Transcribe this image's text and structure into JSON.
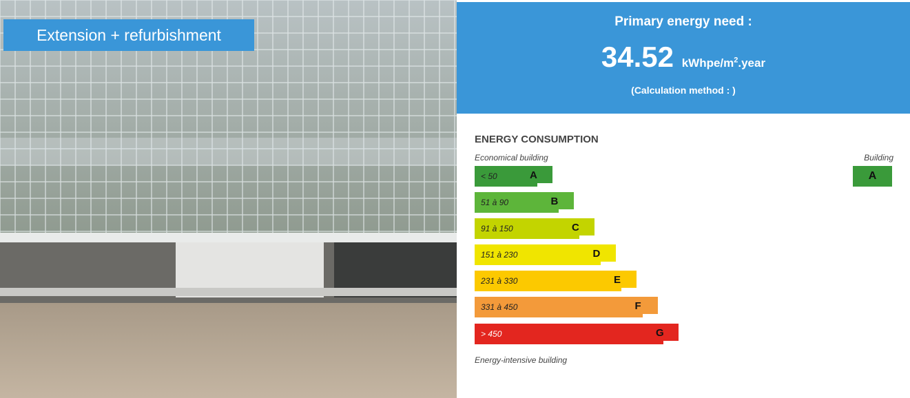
{
  "photo": {
    "caption": "Extension + refurbishment"
  },
  "energy_need": {
    "title": "Primary energy need :",
    "value": "34.52",
    "unit": "kWhpe/m",
    "unit_sup": "2",
    "unit_suffix": ".year",
    "method": "(Calculation method : )"
  },
  "consumption": {
    "title": "ENERGY CONSUMPTION",
    "top_label": "Economical building",
    "bottom_label": "Energy-intensive building",
    "building_label": "Building",
    "building_class": "A",
    "classes": [
      {
        "range": "< 50",
        "letter": "A"
      },
      {
        "range": "51 à 90",
        "letter": "B"
      },
      {
        "range": "91 à 150",
        "letter": "C"
      },
      {
        "range": "151 à 230",
        "letter": "D"
      },
      {
        "range": "231 à 330",
        "letter": "E"
      },
      {
        "range": "331 à 450",
        "letter": "F"
      },
      {
        "range": "> 450",
        "letter": "G"
      }
    ]
  }
}
